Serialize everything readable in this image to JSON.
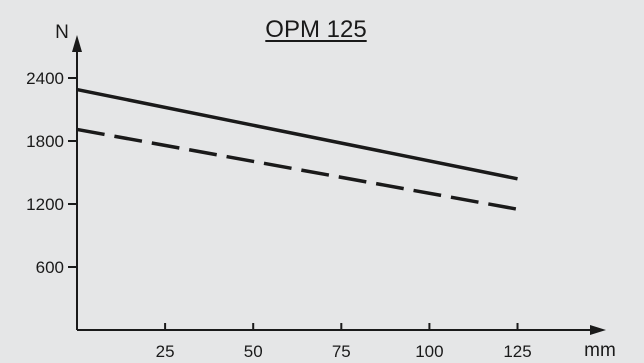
{
  "chart_data": {
    "type": "line",
    "title": "OPM 125",
    "ylabel": "N",
    "xlabel": "mm",
    "xlim": [
      0,
      145
    ],
    "ylim": [
      0,
      2600
    ],
    "x_ticks": [
      25,
      50,
      75,
      100,
      125
    ],
    "y_ticks": [
      600,
      1200,
      1800,
      2400
    ],
    "grid": false,
    "series": [
      {
        "style": "solid",
        "x": [
          0,
          125
        ],
        "y": [
          2290,
          1440
        ]
      },
      {
        "style": "dashed",
        "x": [
          0,
          125
        ],
        "y": [
          1910,
          1150
        ]
      }
    ]
  },
  "colors": {
    "background": "#e5e6e7",
    "ink": "#1a1a1a"
  }
}
